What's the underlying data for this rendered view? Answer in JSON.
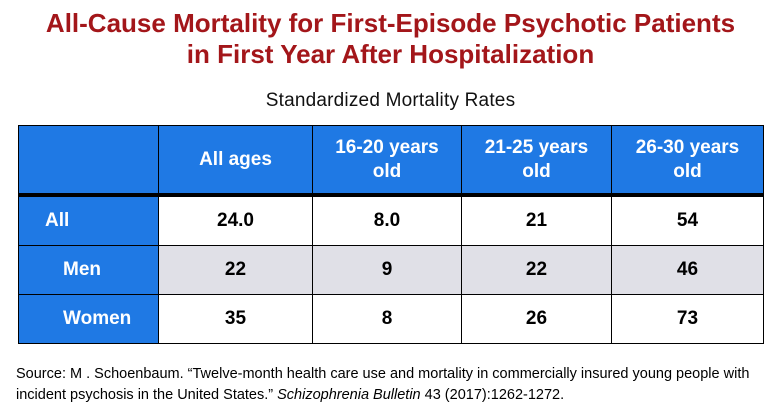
{
  "title": {
    "line1": "All-Cause Mortality for First-Episode Psychotic Patients",
    "line2": "in First Year After Hospitalization"
  },
  "subtitle": "Standardized Mortality Rates",
  "table": {
    "headers": [
      "",
      "All ages",
      "16-20 years\nold",
      "21-25 years\nold",
      "26-30 years\nold"
    ],
    "rows": [
      {
        "label": "All",
        "values": [
          "24.0",
          "8.0",
          "21",
          "54"
        ]
      },
      {
        "label": "Men",
        "values": [
          "22",
          "9",
          "22",
          "46"
        ]
      },
      {
        "label": "Women",
        "values": [
          "35",
          "8",
          "26",
          "73"
        ]
      }
    ]
  },
  "source": {
    "prefix": "Source: M . Schoenbaum. “Twelve-month health care use and mortality in commercially insured young people with incident psychosis in the United States.” ",
    "journal": "Schizophrenia Bulletin",
    "suffix": " 43 (2017):1262-1272."
  },
  "colors": {
    "title": "#a3161a",
    "header_bg": "#1f79e4",
    "shaded_row": "#e0e0e7"
  }
}
